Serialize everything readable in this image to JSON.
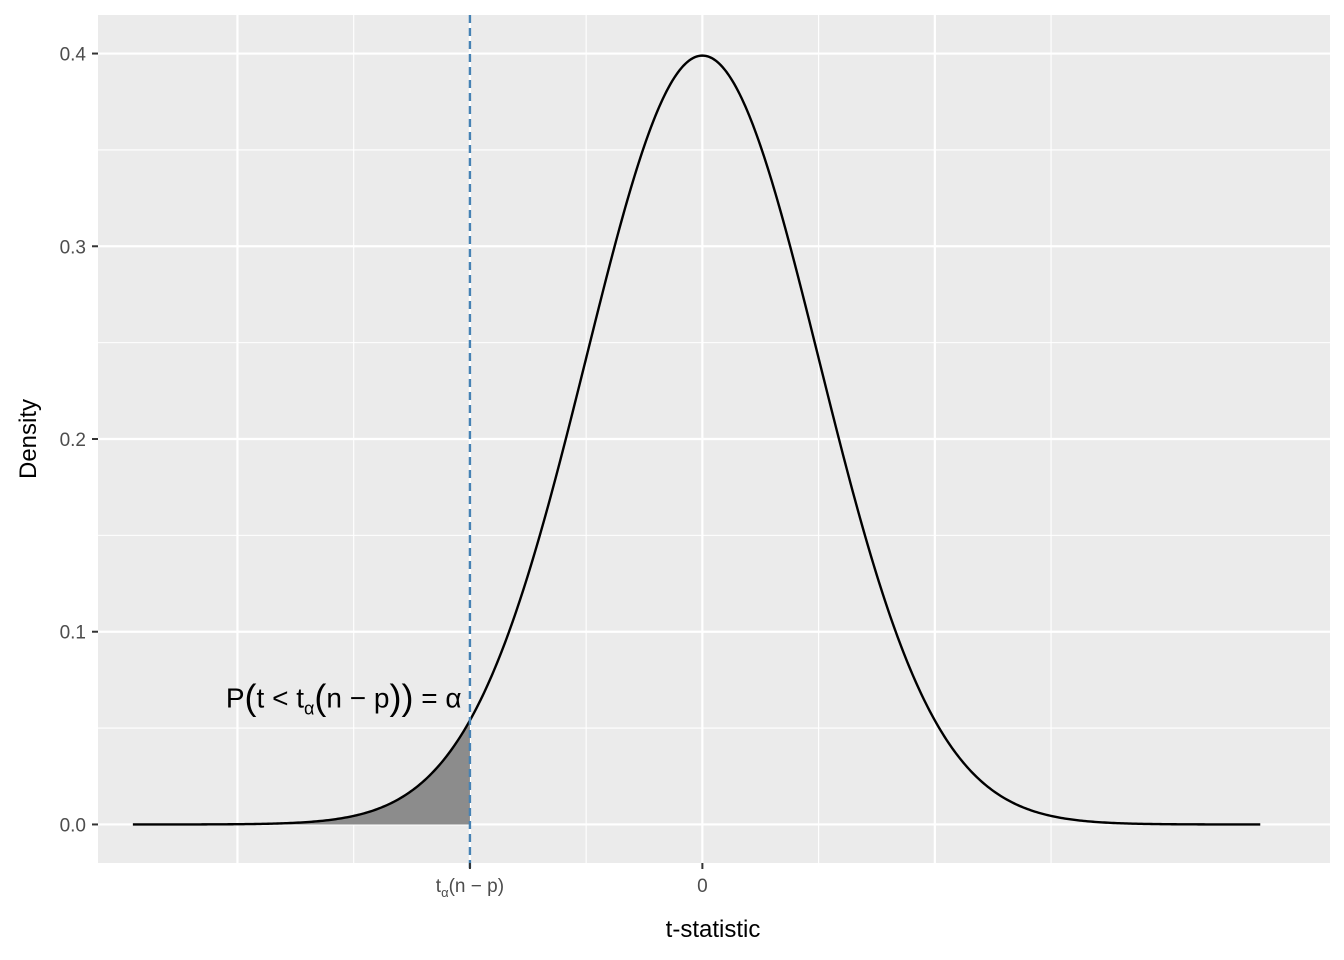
{
  "chart_data": {
    "type": "area",
    "title": "",
    "xlabel": "t-statistic",
    "ylabel": "Density",
    "xlim": [
      -5.2,
      5.4
    ],
    "ylim": [
      -0.02,
      0.42
    ],
    "x_ticks": [
      {
        "value": -2,
        "label_main": "t",
        "label_sub": "α",
        "label_rest": "(n − p)"
      },
      {
        "value": 0,
        "label_main": "0",
        "label_sub": "",
        "label_rest": ""
      }
    ],
    "x_minor_grid": [
      -3,
      -1,
      1,
      3
    ],
    "x_major_grid": [
      -4,
      -2,
      0,
      2
    ],
    "y_ticks": [
      0.0,
      0.1,
      0.2,
      0.3,
      0.4
    ],
    "y_tick_labels": [
      "0.0",
      "0.1",
      "0.2",
      "0.3",
      "0.4"
    ],
    "y_minor_grid": [
      0.05,
      0.15,
      0.25,
      0.35
    ],
    "curve": {
      "distribution": "standard normal density",
      "x_range": [
        -4.9,
        4.8
      ],
      "color": "#000000"
    },
    "shaded_region": {
      "x_from": -4.9,
      "x_to": -2,
      "color": "#8c8c8c"
    },
    "critical_line": {
      "x": -2,
      "color": "#4682b4",
      "style": "dashed"
    },
    "annotation": {
      "x": -4.1,
      "y": 0.066,
      "parts": [
        "P",
        "(",
        "t < t",
        "α",
        "(",
        "n − p",
        ")",
        ")",
        " = α"
      ]
    },
    "panel_background": "#ebebeb",
    "grid": true
  }
}
